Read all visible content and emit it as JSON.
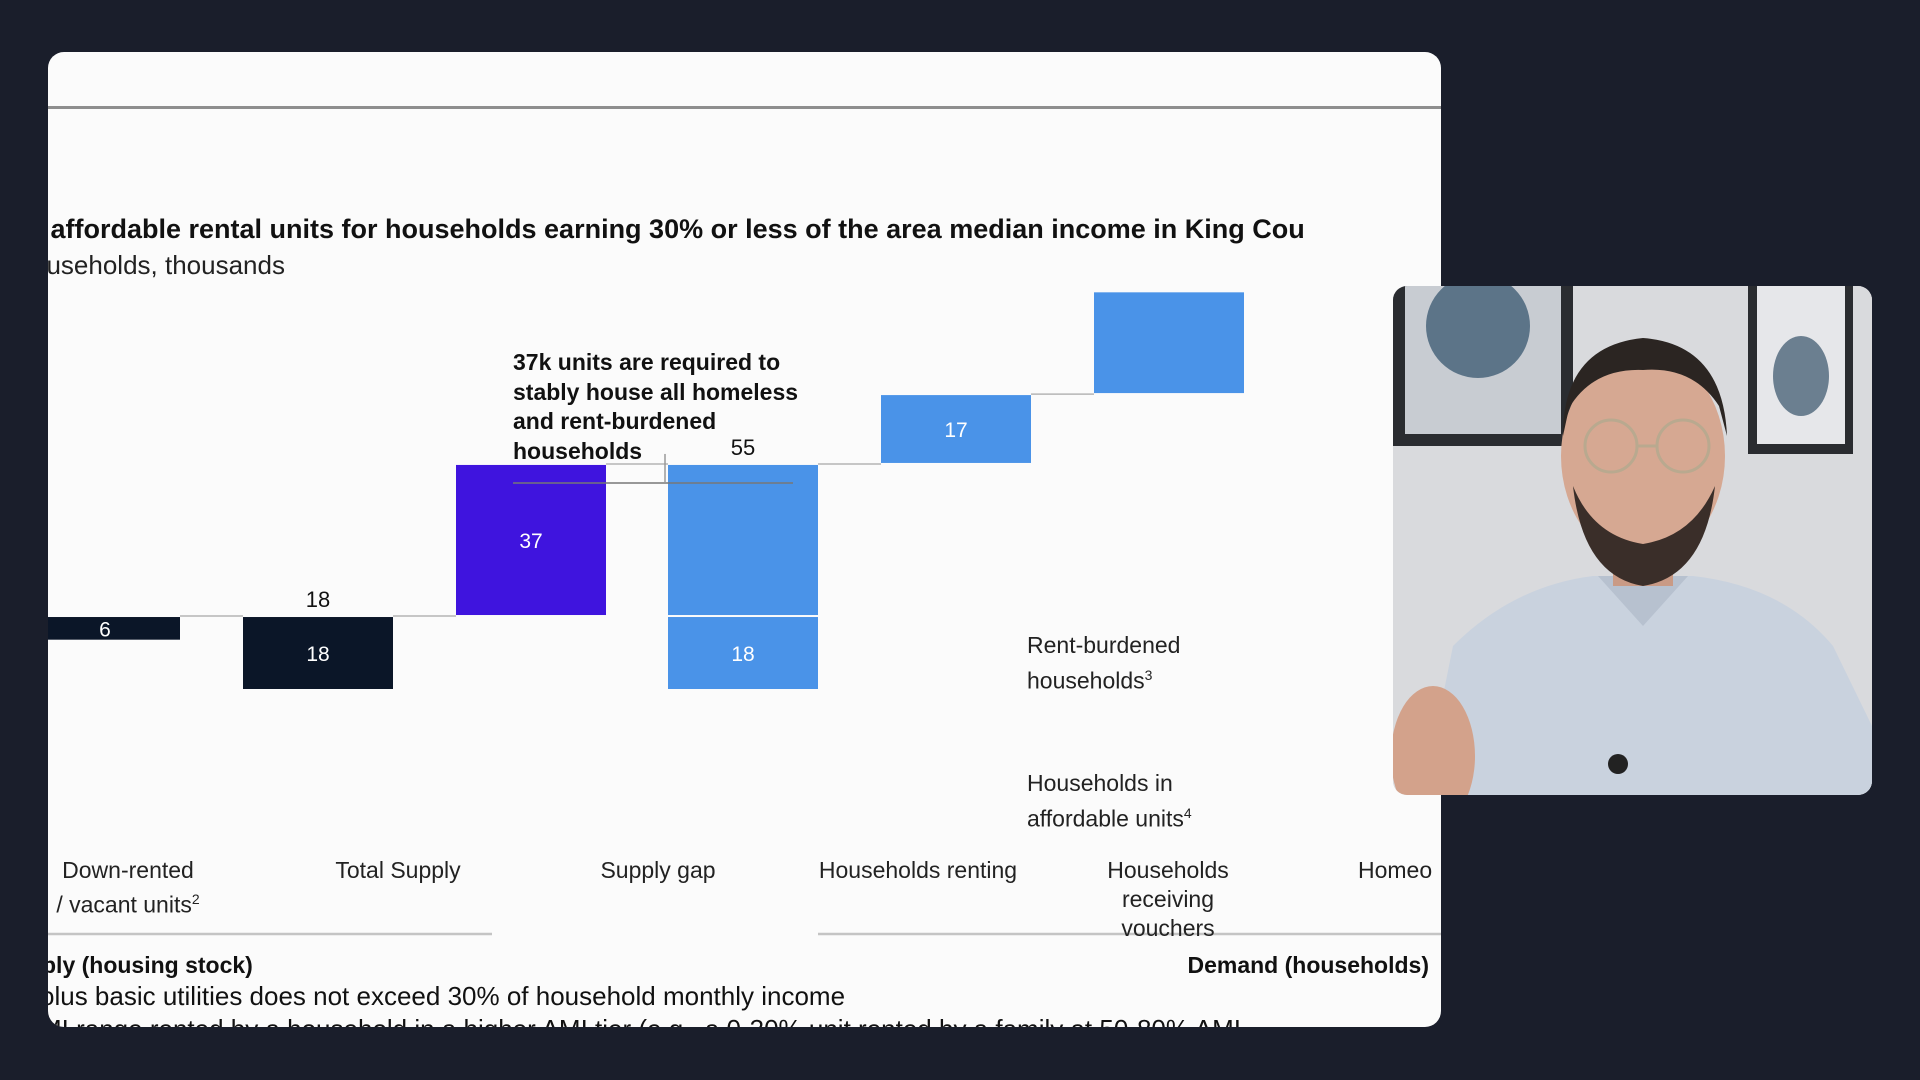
{
  "slide": {
    "title": "f affordable rental units for households earning 30% or less of the area median income in King Cou",
    "subtitle": "ouseholds, thousands",
    "callout": "37k units are required to stably house all homeless and rent-burdened households",
    "annotations": {
      "rent_burdened": "Rent-burdened households",
      "rent_burdened_sup": "3",
      "affordable_units": "Households in affordable units",
      "affordable_units_sup": "4"
    },
    "categories": {
      "down_rented": "Down-rented",
      "down_rented_line2": "/ vacant units",
      "down_rented_sup": "2",
      "total_supply": "Total Supply",
      "supply_gap": "Supply gap",
      "households_renting": "Households renting",
      "households_vouchers": "Households receiving vouchers",
      "homeowners": "Homeo"
    },
    "groups": {
      "supply": "ply (housing stock)",
      "demand": "Demand (households)"
    },
    "footnotes": [
      "olus basic utilities does not exceed 30% of household monthly income",
      "MI range rented by a household in a higher AMI tier (e.g., a 0-30% unit rented by a family at 50-80% AMI"
    ]
  },
  "chart_data": {
    "type": "bar",
    "subtype": "waterfall",
    "title": "f affordable rental units for households earning 30% or less of the area median income in King Cou",
    "ylabel": "ouseholds, thousands",
    "categories": [
      "Down-rented / vacant units",
      "Total Supply",
      "Supply gap",
      "Households renting",
      "Households receiving vouchers",
      "Homeo"
    ],
    "bars": [
      {
        "category": "Down-rented / vacant units",
        "base": 12,
        "value": 6,
        "label": "6",
        "color": "#0b1628"
      },
      {
        "category": "Total Supply",
        "base": 0,
        "value": 18,
        "label": "18",
        "total_label": "18",
        "color": "#0b1628"
      },
      {
        "category": "Supply gap",
        "base": 18,
        "value": 37,
        "label": "37",
        "color": "#3f14de"
      },
      {
        "category": "Households renting",
        "base": 18,
        "value": 37,
        "label": "",
        "total_label": "55",
        "color": "#4a93e8",
        "segment": "Rent-burdened households"
      },
      {
        "category": "Households renting",
        "base": 0,
        "value": 18,
        "label": "18",
        "color": "#4a93e8",
        "segment": "Households in affordable units"
      },
      {
        "category": "Households receiving vouchers",
        "base": 55,
        "value": 17,
        "label": "17",
        "color": "#4a93e8"
      },
      {
        "category": "Homeo",
        "base": 72,
        "value": 25,
        "label": "",
        "color": "#4a93e8"
      }
    ],
    "ylim": [
      0,
      100
    ],
    "grid": false
  },
  "webcam": {
    "shirt_color": "#c9d2de",
    "wall_color": "#d8d9dc"
  }
}
